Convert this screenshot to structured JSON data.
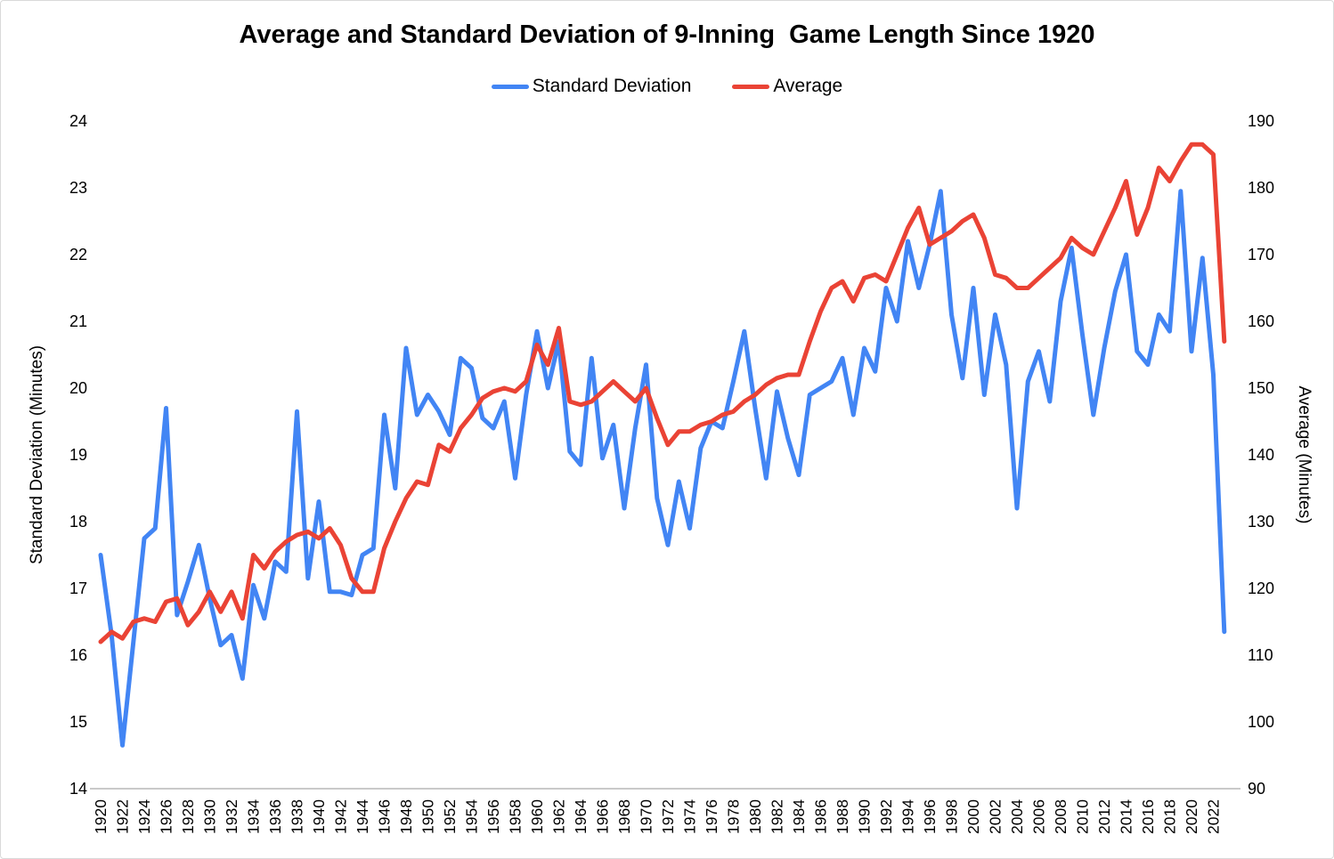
{
  "chart_data": {
    "type": "line",
    "title": "Average and Standard Deviation of 9-Inning  Game Length Since 1920",
    "grid": false,
    "legend_position": "top",
    "x_start": 1920,
    "x_end": 2023,
    "x_axis": {
      "tick_start": 1920,
      "tick_end": 2022,
      "tick_step": 2
    },
    "left_axis": {
      "label": "Standard Deviation (Minutes)",
      "min": 14,
      "max": 24,
      "step": 1
    },
    "right_axis": {
      "label": "Average (Minutes)",
      "min": 90,
      "max": 190,
      "step": 10
    },
    "series": [
      {
        "name": "Standard Deviation",
        "axis": "left",
        "color": "#4285F4",
        "values": [
          17.5,
          16.3,
          14.65,
          16.2,
          17.75,
          17.9,
          19.7,
          16.6,
          17.1,
          17.65,
          16.85,
          16.15,
          16.3,
          15.65,
          17.05,
          16.55,
          17.4,
          17.25,
          19.65,
          17.15,
          18.3,
          16.95,
          16.95,
          16.9,
          17.5,
          17.6,
          19.6,
          18.5,
          20.6,
          19.6,
          19.9,
          19.65,
          19.3,
          20.45,
          20.3,
          19.55,
          19.4,
          19.8,
          18.65,
          19.9,
          20.85,
          20.0,
          20.7,
          19.05,
          18.85,
          20.45,
          18.95,
          19.45,
          18.2,
          19.4,
          20.35,
          18.35,
          17.65,
          18.6,
          17.9,
          19.1,
          19.5,
          19.4,
          20.1,
          20.85,
          19.7,
          18.65,
          19.95,
          19.25,
          18.7,
          19.9,
          20.0,
          20.1,
          20.45,
          19.6,
          20.6,
          20.25,
          21.5,
          21.0,
          22.2,
          21.5,
          22.15,
          22.95,
          21.1,
          20.15,
          21.5,
          19.9,
          21.1,
          20.35,
          18.2,
          20.1,
          20.55,
          19.8,
          21.3,
          22.1,
          20.8,
          19.6,
          20.6,
          21.45,
          22.0,
          20.55,
          20.35,
          21.1,
          20.85,
          22.95,
          20.55,
          21.95,
          20.2,
          16.35
        ]
      },
      {
        "name": "Average",
        "axis": "right",
        "color": "#EA4335",
        "values": [
          112,
          113.5,
          112.5,
          115,
          115.5,
          115,
          118,
          118.5,
          114.5,
          116.5,
          119.5,
          116.5,
          119.5,
          115.5,
          125,
          123,
          125.5,
          127,
          128,
          128.5,
          127.5,
          129,
          126.5,
          121.5,
          119.5,
          119.5,
          126,
          130,
          133.5,
          136,
          135.5,
          141.5,
          140.5,
          144,
          146,
          148.5,
          149.5,
          150,
          149.5,
          151,
          156.5,
          153.5,
          159,
          148,
          147.5,
          148,
          149.5,
          151,
          149.5,
          148,
          150,
          145.5,
          141.5,
          143.5,
          143.5,
          144.5,
          145,
          146,
          146.5,
          148,
          149,
          150.5,
          151.5,
          152,
          152,
          157,
          161.5,
          165,
          166,
          163,
          166.5,
          167,
          166,
          170,
          174,
          177,
          171.5,
          172.5,
          173.5,
          175,
          176,
          172.5,
          167,
          166.5,
          165,
          165,
          166.5,
          168,
          169.5,
          172.5,
          171,
          170,
          173.5,
          177,
          181,
          173,
          177,
          183,
          181,
          184,
          186.5,
          186.5,
          185,
          157
        ]
      }
    ]
  },
  "legend": {
    "items": [
      {
        "label": "Standard Deviation",
        "color": "#4285F4"
      },
      {
        "label": "Average",
        "color": "#EA4335"
      }
    ]
  },
  "axis_line_color": "#b7b7b7"
}
